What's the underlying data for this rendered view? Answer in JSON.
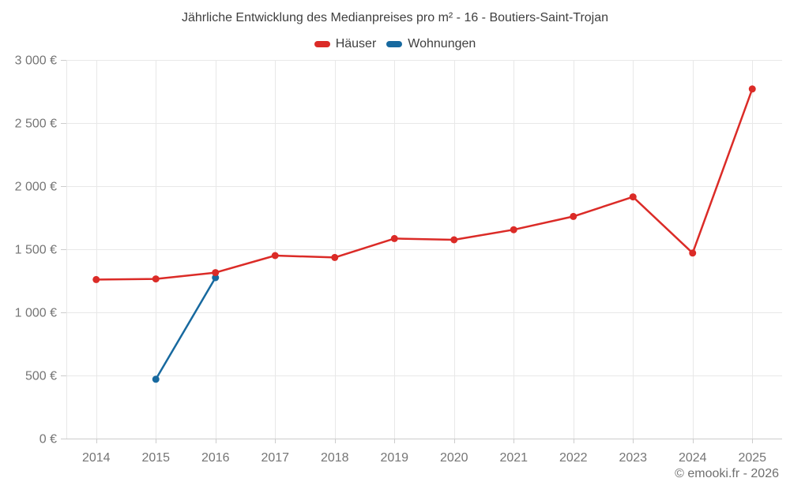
{
  "chart_data": {
    "type": "line",
    "title": "Jährliche Entwicklung des Medianpreises pro m² - 16 - Boutiers-Saint-Trojan",
    "categories": [
      "2014",
      "2015",
      "2016",
      "2017",
      "2018",
      "2019",
      "2020",
      "2021",
      "2022",
      "2023",
      "2024",
      "2025"
    ],
    "series": [
      {
        "name": "Häuser",
        "color": "#db2b27",
        "values": [
          1260,
          1265,
          1315,
          1450,
          1435,
          1585,
          1575,
          1655,
          1760,
          1915,
          1470,
          2770
        ]
      },
      {
        "name": "Wohnungen",
        "color": "#17699f",
        "values": [
          null,
          470,
          1275,
          null,
          null,
          null,
          null,
          null,
          null,
          null,
          null,
          null
        ]
      }
    ],
    "xlabel": "",
    "ylabel": "",
    "ylim": [
      0,
      3000
    ],
    "ytick_step": 500,
    "ytick_labels": [
      "0 €",
      "500 €",
      "1 000 €",
      "1 500 €",
      "2 000 €",
      "2 500 €",
      "3 000 €"
    ],
    "grid": true,
    "legend_position": "top",
    "colors": {
      "grid": "#e8e8e8",
      "axis": "#cccccc",
      "tick_text": "#757575",
      "title_text": "#3f3f3f",
      "footer_text": "#6f6f6f"
    }
  },
  "footer": {
    "copyright": "© emooki.fr - 2026"
  }
}
